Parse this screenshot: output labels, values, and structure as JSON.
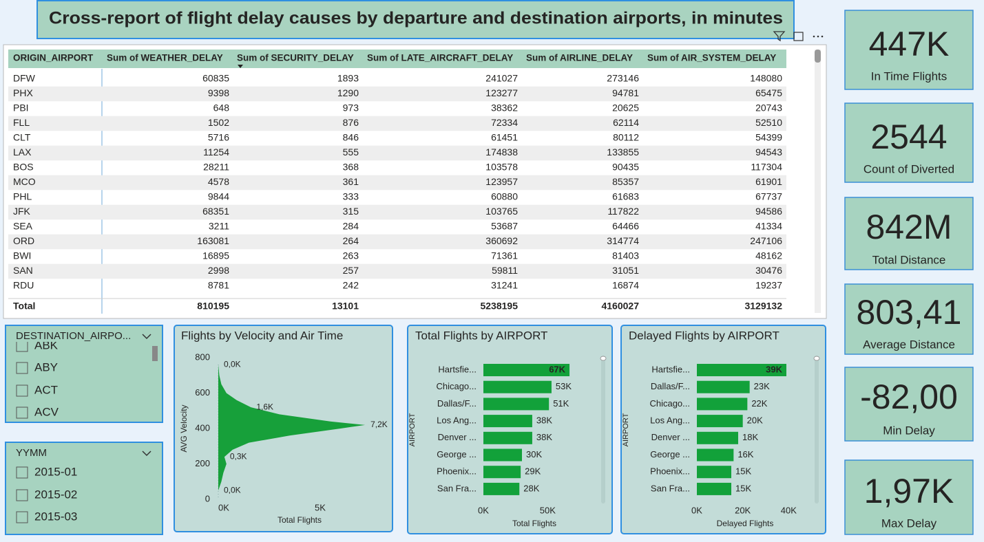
{
  "title": "Cross-report of flight delay causes by departure and destination airports, in minutes",
  "table": {
    "columns": [
      "ORIGIN_AIRPORT",
      "Sum of WEATHER_DELAY",
      "Sum of SECURITY_DELAY",
      "Sum of LATE_AIRCRAFT_DELAY",
      "Sum of AIRLINE_DELAY",
      "Sum of AIR_SYSTEM_DELAY"
    ],
    "rows": [
      [
        "DFW",
        60835,
        1893,
        241027,
        273146,
        148080
      ],
      [
        "PHX",
        9398,
        1290,
        123277,
        94781,
        65475
      ],
      [
        "PBI",
        648,
        973,
        38362,
        20625,
        20743
      ],
      [
        "FLL",
        1502,
        876,
        72334,
        62114,
        52510
      ],
      [
        "CLT",
        5716,
        846,
        61451,
        80112,
        54399
      ],
      [
        "LAX",
        11254,
        555,
        174838,
        133855,
        94543
      ],
      [
        "BOS",
        28211,
        368,
        103578,
        90435,
        117304
      ],
      [
        "MCO",
        4578,
        361,
        123957,
        85357,
        61901
      ],
      [
        "PHL",
        9844,
        333,
        60880,
        61683,
        67737
      ],
      [
        "JFK",
        68351,
        315,
        103765,
        117822,
        94586
      ],
      [
        "SEA",
        3211,
        284,
        53687,
        64466,
        41334
      ],
      [
        "ORD",
        163081,
        264,
        360692,
        314774,
        247106
      ],
      [
        "BWI",
        16895,
        263,
        71361,
        81403,
        48162
      ],
      [
        "SAN",
        2998,
        257,
        59811,
        31051,
        30476
      ],
      [
        "RDU",
        8781,
        242,
        31241,
        16874,
        19237
      ]
    ],
    "total": [
      "Total",
      810195,
      13101,
      5238195,
      4160027,
      3129132
    ]
  },
  "kpis": [
    {
      "value": "447K",
      "label": "In Time Flights"
    },
    {
      "value": "2544",
      "label": "Count of Diverted"
    },
    {
      "value": "842M",
      "label": "Total Distance"
    },
    {
      "value": "803,41",
      "label": "Average Distance"
    },
    {
      "value": "-82,00",
      "label": "Min Delay"
    },
    {
      "value": "1,97K",
      "label": "Max Delay"
    }
  ],
  "slicers": [
    {
      "title": "DESTINATION_AIRPO...",
      "items": [
        "ABK",
        "ABY",
        "ACT",
        "ACV"
      ]
    },
    {
      "title": "YYMM",
      "items": [
        "2015-01",
        "2015-02",
        "2015-03"
      ]
    }
  ],
  "chart_data": [
    {
      "type": "area",
      "title": "Flights by Velocity and Air Time",
      "orientation": "horizontal",
      "x_label": "Total Flights",
      "y_label": "AVG Velocity",
      "color": "#17a03a",
      "x": [
        50,
        100,
        150,
        200,
        240,
        280,
        320,
        360,
        400,
        420,
        440,
        480,
        520,
        560,
        600,
        650,
        700,
        760
      ],
      "values": [
        0,
        150,
        250,
        400,
        300,
        700,
        1500,
        3500,
        6000,
        7200,
        5500,
        3000,
        1600,
        900,
        400,
        150,
        50,
        0
      ],
      "value_labels": [
        "0,0K",
        null,
        null,
        null,
        "0,3K",
        null,
        null,
        null,
        null,
        "7,2K",
        null,
        null,
        "1,6K",
        null,
        null,
        null,
        null,
        "0,0K"
      ],
      "xlim": [
        0,
        7500
      ],
      "xticks": [
        {
          "value": 0,
          "label": "0K"
        },
        {
          "value": 5000,
          "label": "5K"
        }
      ],
      "ylim": [
        0,
        800
      ],
      "yticks": [
        0,
        200,
        400,
        600,
        800
      ]
    },
    {
      "type": "bar",
      "orientation": "horizontal",
      "title": "Total Flights by AIRPORT",
      "x_label": "Total Flights",
      "y_label": "AIRPORT",
      "color": "#12a13a",
      "categories": [
        "Hartsfie...",
        "Chicago...",
        "Dallas/F...",
        "Los Ang...",
        "Denver ...",
        "George ...",
        "Phoenix...",
        "San Fra..."
      ],
      "values": [
        67000,
        53000,
        51000,
        38000,
        38000,
        30000,
        29000,
        28000
      ],
      "value_labels": [
        "67K",
        "53K",
        "51K",
        "38K",
        "38K",
        "30K",
        "29K",
        "28K"
      ],
      "xlim": [
        0,
        90000
      ],
      "xticks": [
        {
          "value": 0,
          "label": "0K"
        },
        {
          "value": 50000,
          "label": "50K"
        }
      ]
    },
    {
      "type": "bar",
      "orientation": "horizontal",
      "title": "Delayed Flights by AIRPORT",
      "x_label": "Delayed Flights",
      "y_label": "AIRPORT",
      "color": "#12a13a",
      "categories": [
        "Hartsfie...",
        "Dallas/F...",
        "Chicago...",
        "Los Ang...",
        "Denver ...",
        "George ...",
        "Phoenix...",
        "San Fra..."
      ],
      "values": [
        39000,
        23000,
        22000,
        20000,
        18000,
        16000,
        15000,
        15000
      ],
      "value_labels": [
        "39K",
        "23K",
        "22K",
        "20K",
        "18K",
        "16K",
        "15K",
        "15K"
      ],
      "xlim": [
        0,
        48000
      ],
      "xticks": [
        {
          "value": 0,
          "label": "0K"
        },
        {
          "value": 20000,
          "label": "20K"
        },
        {
          "value": 40000,
          "label": "40K"
        }
      ]
    }
  ]
}
